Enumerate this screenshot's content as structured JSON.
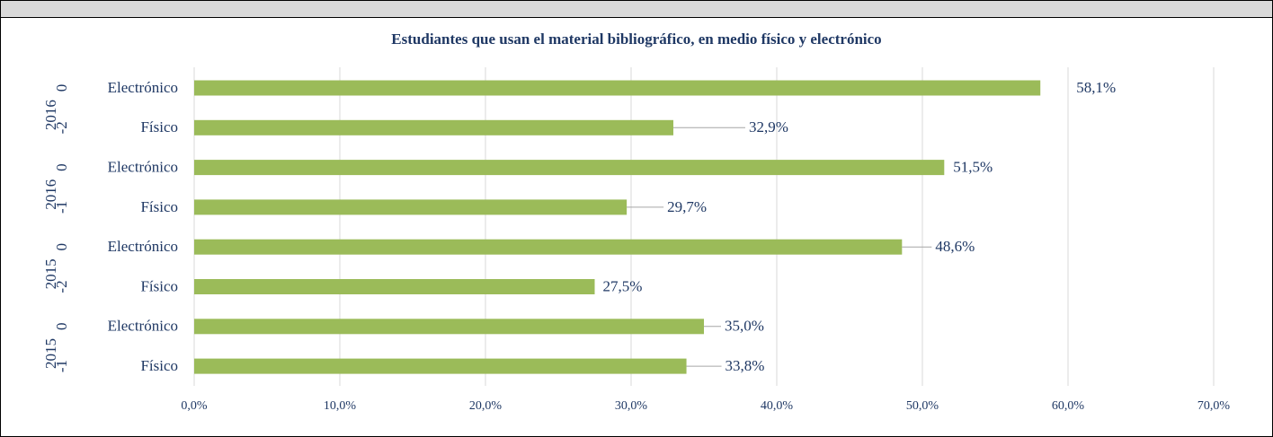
{
  "chart_data": {
    "type": "bar",
    "orientation": "horizontal",
    "title": "Estudiantes que usan el material bibliográfico, en medio físico y electrónico",
    "groups": [
      {
        "lines": [
          "2016",
          "-2",
          "0"
        ]
      },
      {
        "lines": [
          "2016",
          "-1",
          "0"
        ]
      },
      {
        "lines": [
          "2015",
          "-2",
          "0"
        ]
      },
      {
        "lines": [
          "2015",
          "-1",
          "0"
        ]
      }
    ],
    "categories": [
      "Electrónico",
      "Físico",
      "Electrónico",
      "Físico",
      "Electrónico",
      "Físico",
      "Electrónico",
      "Físico"
    ],
    "values": [
      58.1,
      32.9,
      51.5,
      29.7,
      48.6,
      27.5,
      35.0,
      33.8
    ],
    "value_labels": [
      "58,1%",
      "32,9%",
      "51,5%",
      "29,7%",
      "48,6%",
      "27,5%",
      "35,0%",
      "33,8%"
    ],
    "color": "#9bbb59",
    "xlim": [
      0,
      70
    ],
    "xticks": [
      {
        "value": 0,
        "label": "0,0%"
      },
      {
        "value": 10,
        "label": "10,0%"
      },
      {
        "value": 20,
        "label": "20,0%"
      },
      {
        "value": 30,
        "label": "30,0%"
      },
      {
        "value": 40,
        "label": "40,0%"
      },
      {
        "value": 50,
        "label": "50,0%"
      },
      {
        "value": 60,
        "label": "60,0%"
      },
      {
        "value": 70,
        "label": "70,0%"
      }
    ],
    "grid": true
  }
}
